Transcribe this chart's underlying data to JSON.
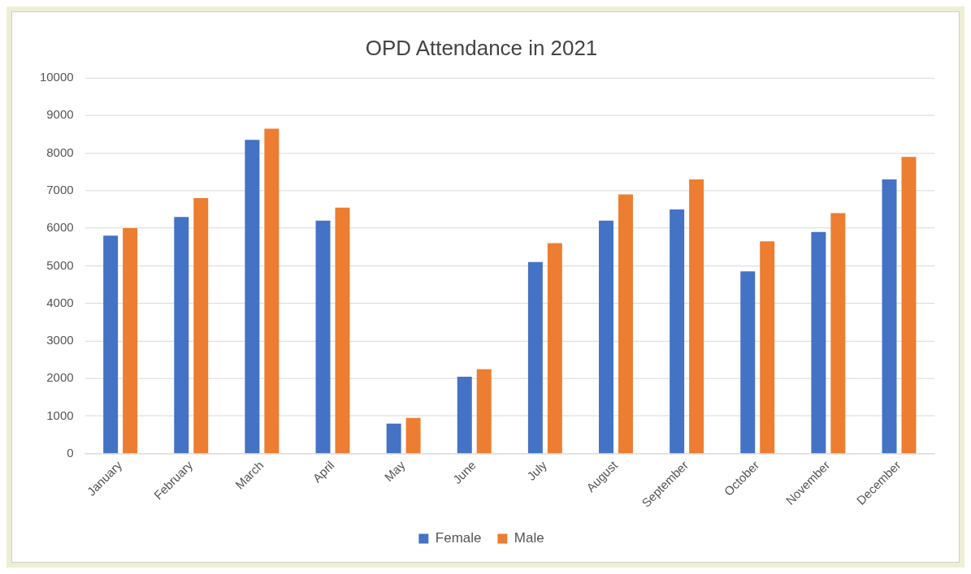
{
  "chart_data": {
    "type": "bar",
    "title": "OPD Attendance in 2021",
    "categories": [
      "January",
      "February",
      "March",
      "April",
      "May",
      "June",
      "July",
      "August",
      "September",
      "October",
      "November",
      "December"
    ],
    "series": [
      {
        "name": "Female",
        "color": "#4472c4",
        "values": [
          5800,
          6300,
          8350,
          6200,
          800,
          2050,
          5100,
          6200,
          6500,
          4850,
          5900,
          7300
        ]
      },
      {
        "name": "Male",
        "color": "#ed7d31",
        "values": [
          6000,
          6800,
          8650,
          6550,
          950,
          2250,
          5600,
          6900,
          7300,
          5650,
          6400,
          7900
        ]
      }
    ],
    "ylim": [
      0,
      10000
    ],
    "yticks": [
      0,
      1000,
      2000,
      3000,
      4000,
      5000,
      6000,
      7000,
      8000,
      9000,
      10000
    ],
    "grid": "y",
    "legend": "bottom"
  }
}
